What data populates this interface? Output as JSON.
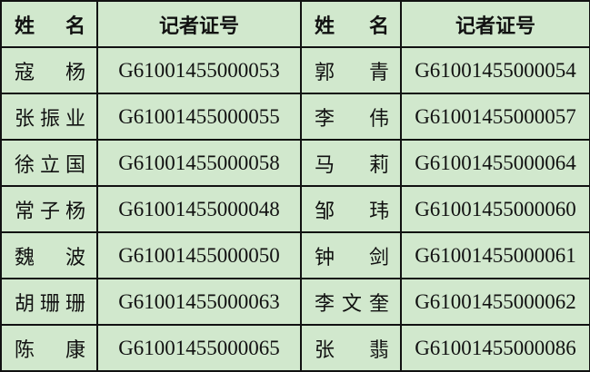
{
  "headers": {
    "name": "姓 名",
    "id": "记者证号"
  },
  "rows": [
    {
      "name1": "寇杨",
      "id1": "G61001455000053",
      "name2": "郭青",
      "id2": "G61001455000054"
    },
    {
      "name1": "张振业",
      "id1": "G61001455000055",
      "name2": "李伟",
      "id2": "G61001455000057"
    },
    {
      "name1": "徐立国",
      "id1": "G61001455000058",
      "name2": "马莉",
      "id2": "G61001455000064"
    },
    {
      "name1": "常子杨",
      "id1": "G61001455000048",
      "name2": "邹玮",
      "id2": "G61001455000060"
    },
    {
      "name1": "魏波",
      "id1": "G61001455000050",
      "name2": "钟剑",
      "id2": "G61001455000061"
    },
    {
      "name1": "胡珊珊",
      "id1": "G61001455000063",
      "name2": "李文奎",
      "id2": "G61001455000062"
    },
    {
      "name1": "陈康",
      "id1": "G61001455000065",
      "name2": "张翡",
      "id2": "G61001455000086"
    }
  ]
}
